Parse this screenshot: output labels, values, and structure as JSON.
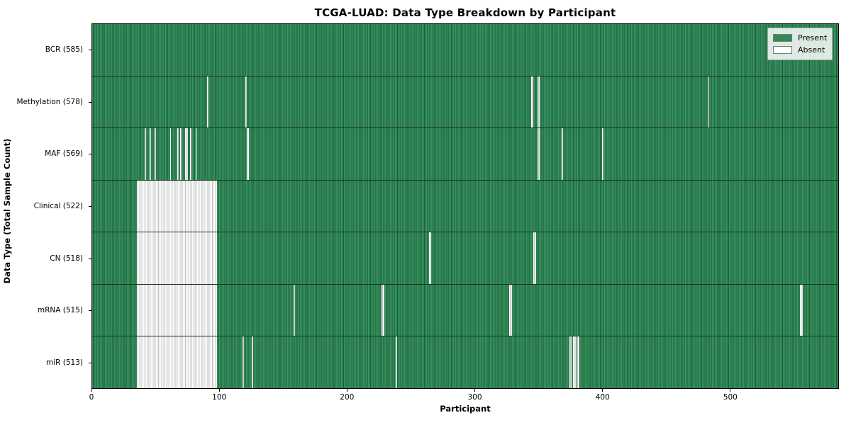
{
  "title": "TCGA-LUAD: Data Type Breakdown by Participant",
  "colors": {
    "present": "#2e8b57",
    "absent": "#ffffff",
    "row_edge": "#16381f",
    "axis": "#000000",
    "legend_border": "#b0b0b0"
  },
  "chart_data": {
    "type": "heatmap",
    "title": "TCGA-LUAD: Data Type Breakdown by Participant",
    "xlabel": "Participant",
    "ylabel": "Data Type (Total Sample Count)",
    "x_ticks": [
      0,
      100,
      200,
      300,
      400,
      500
    ],
    "x_range": [
      0,
      585
    ],
    "n_participants": 585,
    "grid": false,
    "legend_position": "upper right",
    "legend": [
      {
        "label": "Present",
        "color": "#2e8b57"
      },
      {
        "label": "Absent",
        "color": "#ffffff"
      }
    ],
    "rows": [
      {
        "label": "BCR (585)",
        "data_type": "BCR",
        "present_count": 585,
        "absent_count": 0,
        "absent_runs": []
      },
      {
        "label": "Methylation (578)",
        "data_type": "Methylation",
        "present_count": 578,
        "absent_count": 7,
        "absent_runs": [
          [
            90,
            1
          ],
          [
            120,
            1
          ],
          [
            344,
            2
          ],
          [
            349,
            2
          ],
          [
            483,
            1
          ]
        ]
      },
      {
        "label": "MAF (569)",
        "data_type": "MAF",
        "present_count": 569,
        "absent_count": 16,
        "absent_runs": [
          [
            41,
            1
          ],
          [
            45,
            1
          ],
          [
            49,
            1
          ],
          [
            61,
            1
          ],
          [
            67,
            1
          ],
          [
            69,
            1
          ],
          [
            73,
            2
          ],
          [
            77,
            1
          ],
          [
            81,
            1
          ],
          [
            121,
            2
          ],
          [
            349,
            2
          ],
          [
            368,
            1
          ],
          [
            400,
            1
          ]
        ]
      },
      {
        "label": "Clinical (522)",
        "data_type": "Clinical",
        "present_count": 522,
        "absent_count": 63,
        "absent_runs": [
          [
            35,
            63
          ]
        ]
      },
      {
        "label": "CN (518)",
        "data_type": "CN",
        "present_count": 518,
        "absent_count": 67,
        "absent_runs": [
          [
            35,
            63
          ],
          [
            264,
            2
          ],
          [
            346,
            2
          ]
        ]
      },
      {
        "label": "mRNA (515)",
        "data_type": "mRNA",
        "present_count": 515,
        "absent_count": 70,
        "absent_runs": [
          [
            35,
            63
          ],
          [
            158,
            1
          ],
          [
            227,
            2
          ],
          [
            327,
            2
          ],
          [
            555,
            2
          ]
        ]
      },
      {
        "label": "miR (513)",
        "data_type": "miR",
        "present_count": 513,
        "absent_count": 72,
        "absent_runs": [
          [
            35,
            63
          ],
          [
            118,
            1
          ],
          [
            125,
            1
          ],
          [
            238,
            1
          ],
          [
            374,
            2
          ],
          [
            377,
            2
          ],
          [
            380,
            2
          ]
        ]
      }
    ]
  }
}
